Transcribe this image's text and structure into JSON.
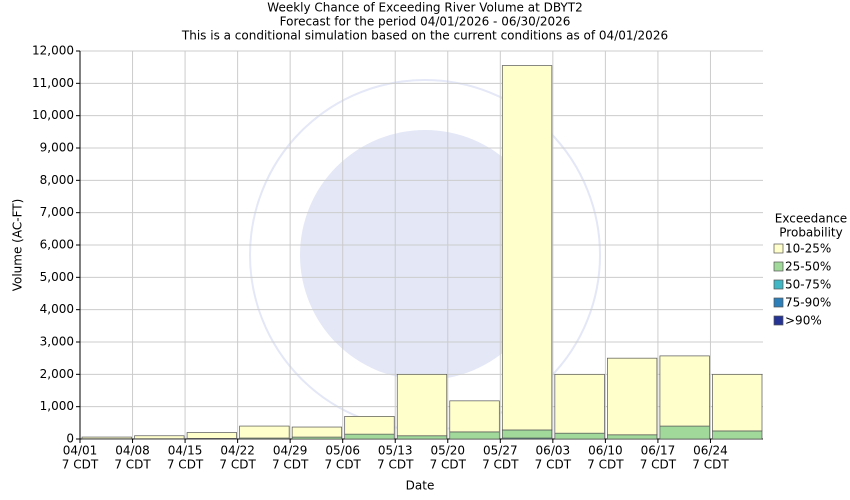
{
  "chart_data": {
    "type": "stacked_bar",
    "title": "Weekly Chance of Exceeding River Volume at DBYT2",
    "subtitle": "Forecast for the period 04/01/2026 - 06/30/2026",
    "note": "This is a conditional simulation based on the current conditions as of 04/01/2026",
    "x_label": "Date",
    "y_label": "Volume (AC-FT)",
    "categories": [
      [
        "04/01",
        "7 CDT"
      ],
      [
        "04/08",
        "7 CDT"
      ],
      [
        "04/15",
        "7 CDT"
      ],
      [
        "04/22",
        "7 CDT"
      ],
      [
        "04/29",
        "7 CDT"
      ],
      [
        "05/06",
        "7 CDT"
      ],
      [
        "05/13",
        "7 CDT"
      ],
      [
        "05/20",
        "7 CDT"
      ],
      [
        "05/27",
        "7 CDT"
      ],
      [
        "06/03",
        "7 CDT"
      ],
      [
        "06/10",
        "7 CDT"
      ],
      [
        "06/17",
        "7 CDT"
      ],
      [
        "06/24",
        "7 CDT"
      ]
    ],
    "legend_title": [
      "Exceedance",
      "Probability"
    ],
    "legend_position": "right",
    "series": [
      {
        "name": "10-25%",
        "color": "#ffffcc",
        "values": [
          50,
          90,
          180,
          370,
          310,
          550,
          1900,
          960,
          11270,
          1820,
          2370,
          2170,
          1750
        ]
      },
      {
        "name": "25-50%",
        "color": "#a1d99b",
        "values": [
          10,
          10,
          20,
          30,
          60,
          150,
          100,
          220,
          250,
          180,
          130,
          400,
          250
        ]
      },
      {
        "name": "50-75%",
        "color": "#41b6c4",
        "values": [
          0,
          0,
          0,
          0,
          0,
          0,
          0,
          0,
          30,
          0,
          0,
          0,
          0
        ]
      },
      {
        "name": "75-90%",
        "color": "#2c7fb8",
        "values": [
          0,
          0,
          0,
          0,
          0,
          0,
          0,
          0,
          0,
          0,
          0,
          0,
          0
        ]
      },
      {
        "name": ">90%",
        "color": "#253494",
        "values": [
          0,
          0,
          0,
          0,
          0,
          0,
          0,
          0,
          0,
          0,
          0,
          0,
          0
        ]
      }
    ],
    "ylim": [
      0,
      12000
    ],
    "yticks": [
      0,
      {
        "value": 1000,
        "label": "1,000"
      },
      {
        "value": 2000,
        "label": "2,000"
      },
      {
        "value": 3000,
        "label": "3,000"
      },
      {
        "value": 4000,
        "label": "4,000"
      },
      {
        "value": 5000,
        "label": "5,000"
      },
      {
        "value": 6000,
        "label": "6,000"
      },
      {
        "value": 7000,
        "label": "7,000"
      },
      {
        "value": 8000,
        "label": "8,000"
      },
      {
        "value": 9000,
        "label": "9,000"
      },
      {
        "value": 10000,
        "label": "10,000"
      },
      {
        "value": 11000,
        "label": "11,000"
      },
      {
        "value": 12000,
        "label": "12,000"
      }
    ],
    "grid": true
  }
}
